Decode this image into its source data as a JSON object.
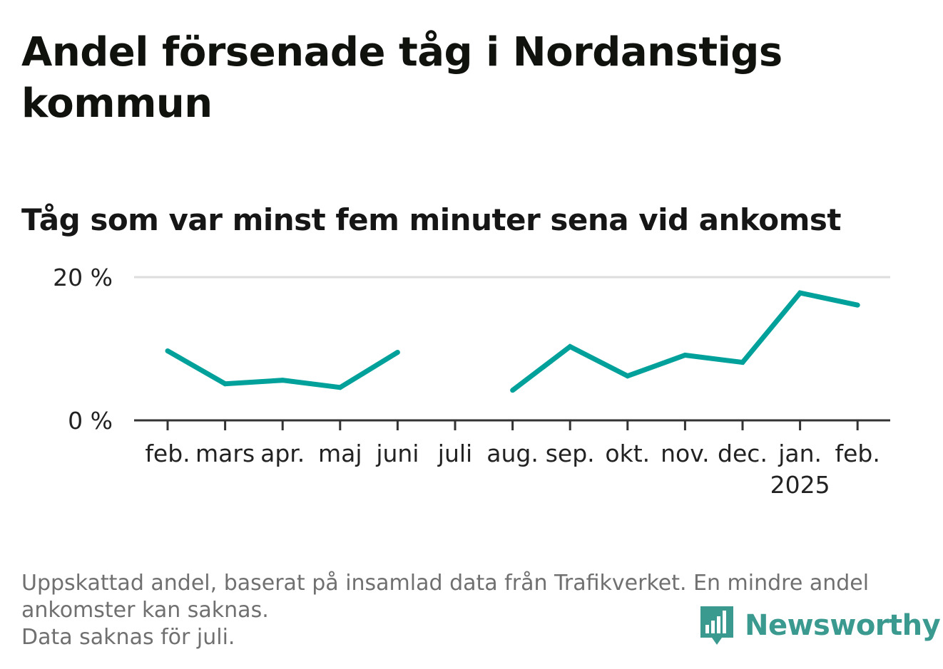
{
  "title": "Andel försenade tåg i Nordanstigs kommun",
  "subtitle": "Tåg som var minst fem minuter sena vid ankomst",
  "footer": {
    "note_line1": "Uppskattad andel, baserat på insamlad data från Trafikverket. En mindre andel ankomster kan saknas.",
    "note_line2": "Data saknas för juli."
  },
  "brand": {
    "name": "Newsworthy",
    "icon": "newsworthy-logo-icon",
    "color": "#3b9a90"
  },
  "chart_data": {
    "type": "line",
    "categories": [
      "feb.",
      "mars",
      "apr.",
      "maj",
      "juni",
      "juli",
      "aug.",
      "sep.",
      "okt.",
      "nov.",
      "dec.",
      "jan.",
      "feb."
    ],
    "year_labels": [
      "",
      "",
      "",
      "",
      "",
      "",
      "",
      "",
      "",
      "",
      "",
      "2025",
      ""
    ],
    "series": [
      {
        "values": [
          9.7,
          5.1,
          5.6,
          4.6,
          9.5,
          null,
          4.2,
          10.3,
          6.2,
          9.1,
          8.1,
          17.8,
          16.1
        ],
        "color": "#00a19a"
      }
    ],
    "y_ticks": [
      {
        "value": 0,
        "label": "0 %"
      },
      {
        "value": 20,
        "label": "20 %"
      }
    ],
    "ylim": [
      0,
      20
    ],
    "grid": true,
    "xlabel": "",
    "ylabel": "",
    "axis_color": "#333333",
    "grid_color": "#dddddd"
  }
}
